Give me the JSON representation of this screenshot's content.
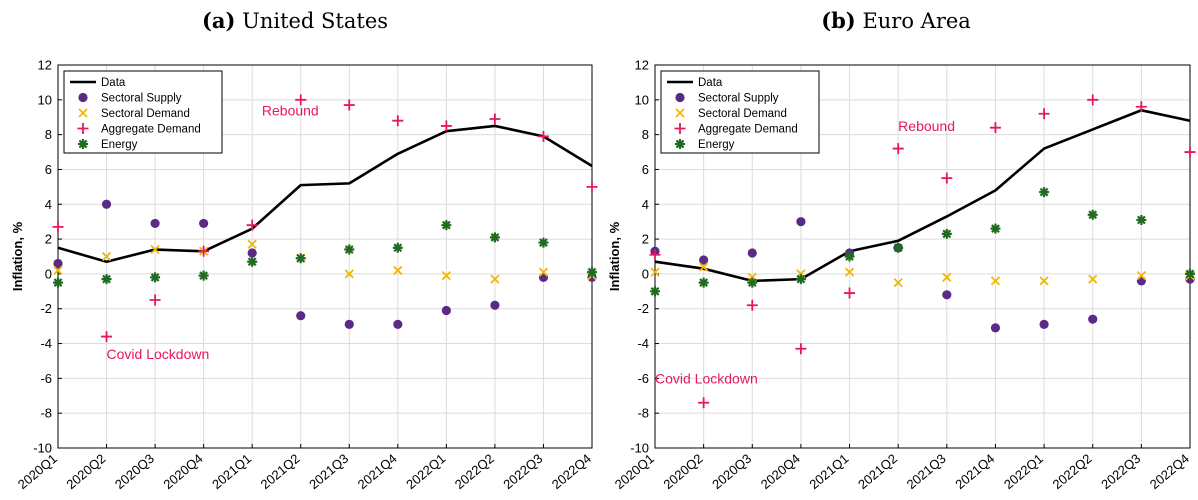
{
  "colors": {
    "data": "#000000",
    "supply": "#5b2a86",
    "demand": "#f2b705",
    "aggregate": "#e8175d",
    "energy": "#1f6b1f",
    "grid": "#dcdcdc"
  },
  "chart_data": [
    {
      "type": "line",
      "panel_label": "(a)",
      "title": "United States",
      "ylabel": "Inflation, %",
      "xlabel": "",
      "ylim": [
        -10,
        12
      ],
      "yticks": [
        -10,
        -8,
        -6,
        -4,
        -2,
        0,
        2,
        4,
        6,
        8,
        10,
        12
      ],
      "grid": true,
      "legend_position": "top-left",
      "categories": [
        "2020Q1",
        "2020Q2",
        "2020Q3",
        "2020Q4",
        "2021Q1",
        "2021Q2",
        "2021Q3",
        "2021Q4",
        "2022Q1",
        "2022Q2",
        "2022Q3",
        "2022Q4"
      ],
      "series": [
        {
          "name": "Data",
          "kind": "line",
          "values": [
            1.5,
            0.7,
            1.4,
            1.3,
            2.6,
            5.1,
            5.2,
            6.9,
            8.2,
            8.5,
            7.9,
            6.2
          ]
        },
        {
          "name": "Sectoral Supply",
          "kind": "dot",
          "values": [
            0.6,
            4.0,
            2.9,
            2.9,
            1.2,
            -2.4,
            -2.9,
            -2.9,
            -2.1,
            -1.8,
            -0.2,
            -0.2
          ]
        },
        {
          "name": "Sectoral Demand",
          "kind": "x",
          "values": [
            0.2,
            1.0,
            1.4,
            1.3,
            1.7,
            0.9,
            0.0,
            0.2,
            -0.1,
            -0.3,
            0.1,
            -0.1
          ]
        },
        {
          "name": "Aggregate Demand",
          "kind": "plus",
          "values": [
            2.7,
            -3.6,
            -1.5,
            1.3,
            2.8,
            10.0,
            9.7,
            8.8,
            8.5,
            8.9,
            7.9,
            5.0
          ]
        },
        {
          "name": "Energy",
          "kind": "star",
          "values": [
            -0.5,
            -0.3,
            -0.2,
            -0.1,
            0.7,
            0.9,
            1.4,
            1.5,
            2.8,
            2.1,
            1.8,
            0.1
          ]
        }
      ],
      "annotations": [
        {
          "text": "Rebound",
          "x": 4.2,
          "y": 9.1
        },
        {
          "text": "Covid Lockdown",
          "x": 1.0,
          "y": -4.9
        }
      ]
    },
    {
      "type": "line",
      "panel_label": "(b)",
      "title": "Euro Area",
      "ylabel": "Inflation, %",
      "xlabel": "",
      "ylim": [
        -10,
        12
      ],
      "yticks": [
        -10,
        -8,
        -6,
        -4,
        -2,
        0,
        2,
        4,
        6,
        8,
        10,
        12
      ],
      "grid": true,
      "legend_position": "top-left",
      "categories": [
        "2020Q1",
        "2020Q2",
        "2020Q3",
        "2020Q4",
        "2021Q1",
        "2021Q2",
        "2021Q3",
        "2021Q4",
        "2022Q1",
        "2022Q2",
        "2022Q3",
        "2022Q4"
      ],
      "series": [
        {
          "name": "Data",
          "kind": "line",
          "values": [
            0.7,
            0.3,
            -0.4,
            -0.3,
            1.3,
            1.9,
            3.3,
            4.8,
            7.2,
            8.3,
            9.4,
            8.8
          ]
        },
        {
          "name": "Sectoral Supply",
          "kind": "dot",
          "values": [
            1.3,
            0.8,
            1.2,
            3.0,
            1.2,
            1.5,
            -1.2,
            -3.1,
            -2.9,
            -2.6,
            -0.4,
            -0.3
          ]
        },
        {
          "name": "Sectoral Demand",
          "kind": "x",
          "values": [
            0.1,
            0.4,
            -0.2,
            0.0,
            0.1,
            -0.5,
            -0.2,
            -0.4,
            -0.4,
            -0.3,
            -0.1,
            -0.1
          ]
        },
        {
          "name": "Aggregate Demand",
          "kind": "plus",
          "values": [
            1.1,
            -7.4,
            -1.8,
            -4.3,
            -1.1,
            7.2,
            5.5,
            8.4,
            9.2,
            10.0,
            9.6,
            7.0
          ]
        },
        {
          "name": "Energy",
          "kind": "star",
          "values": [
            -1.0,
            -0.5,
            -0.5,
            -0.3,
            1.0,
            1.5,
            2.3,
            2.6,
            4.7,
            3.4,
            3.1,
            0.0
          ]
        }
      ],
      "annotations": [
        {
          "text": "Rebound",
          "x": 5.0,
          "y": 8.2
        },
        {
          "text": "Covid Lockdown",
          "x": 0.0,
          "y": -6.3
        }
      ]
    }
  ]
}
